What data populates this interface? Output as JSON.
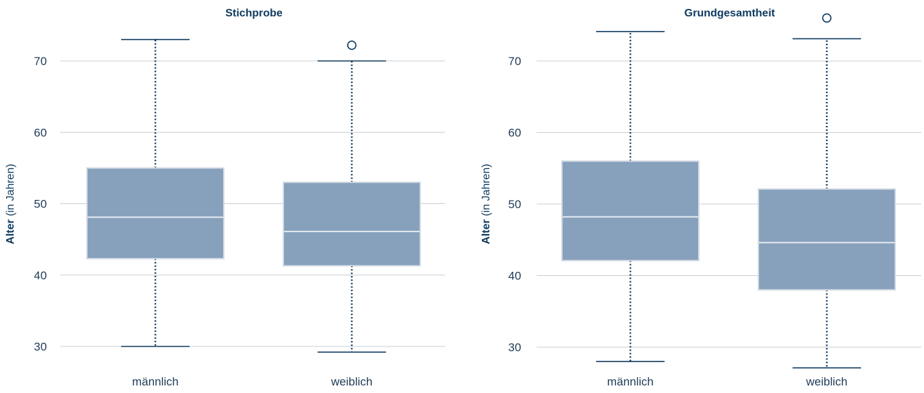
{
  "colors": {
    "box_fill": "#87a0bc",
    "box_border": "#d4dbe4",
    "median": "#e6ebf1",
    "whisker": "#0f3a5f",
    "text": "#0f3a5f",
    "grid": "#c9cdd3"
  },
  "chart_data": [
    {
      "type": "box",
      "title": "Stichprobe",
      "ylabel_bold": "Alter",
      "ylabel_rest": " (in Jahren)",
      "xlabel": "",
      "ylim": [
        27,
        75
      ],
      "yticks": [
        30,
        40,
        50,
        60,
        70
      ],
      "grid": true,
      "categories": [
        "männlich",
        "weiblich"
      ],
      "boxes": [
        {
          "category": "männlich",
          "whisker_low": 30,
          "q1": 42.3,
          "median": 48.1,
          "q3": 55,
          "whisker_high": 73,
          "outliers": []
        },
        {
          "category": "weiblich",
          "whisker_low": 29.2,
          "q1": 41.3,
          "median": 46.1,
          "q3": 53,
          "whisker_high": 70,
          "outliers": [
            72.2
          ]
        }
      ]
    },
    {
      "type": "box",
      "title": "Grundgesamtheit",
      "ylabel_bold": "Alter",
      "ylabel_rest": " (in Jahren)",
      "xlabel": "",
      "ylim": [
        25,
        79
      ],
      "yticks": [
        30,
        40,
        50,
        60,
        70
      ],
      "grid": true,
      "categories": [
        "männlich",
        "weiblich"
      ],
      "boxes": [
        {
          "category": "männlich",
          "whisker_low": 28,
          "q1": 42.1,
          "median": 48.2,
          "q3": 56,
          "whisker_high": 74.1,
          "outliers": []
        },
        {
          "category": "weiblich",
          "whisker_low": 27.1,
          "q1": 38,
          "median": 44.6,
          "q3": 52.1,
          "whisker_high": 73.1,
          "outliers": [
            76
          ]
        }
      ]
    }
  ]
}
